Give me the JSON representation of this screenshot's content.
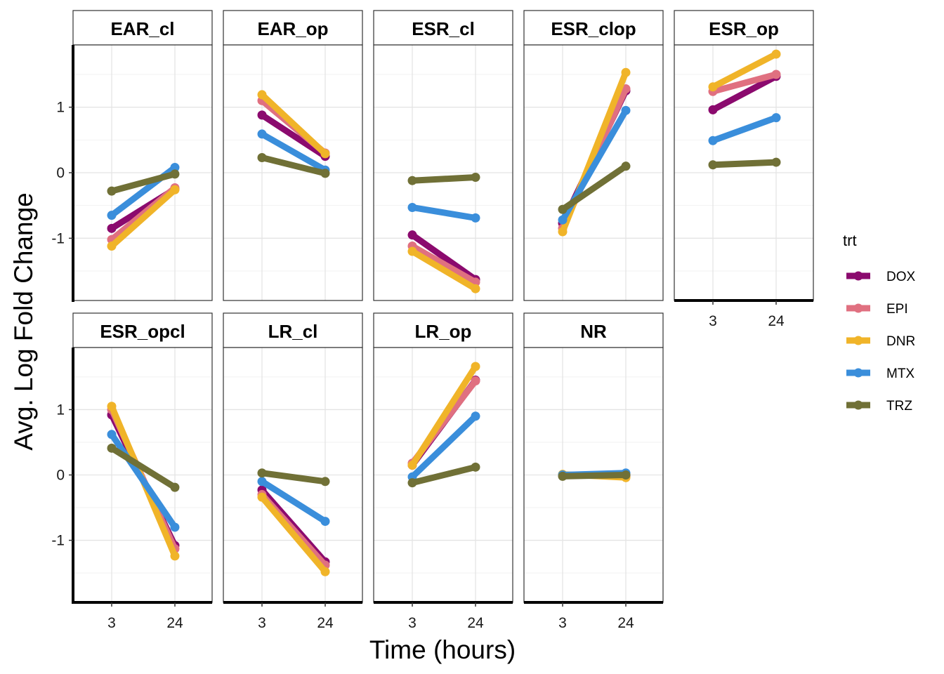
{
  "chart_data": {
    "type": "line",
    "facet_by": "module",
    "x_label": "Time (hours)",
    "y_label": "Avg. Log Fold Change",
    "x_categories": [
      "3",
      "24"
    ],
    "y_ticks": [
      -1,
      0,
      1
    ],
    "y_range": [
      -1.95,
      1.95
    ],
    "grid": true,
    "legend": {
      "title": "trt",
      "position": "right",
      "entries": [
        {
          "name": "DOX",
          "color": "#8B0A6E"
        },
        {
          "name": "EPI",
          "color": "#E07080"
        },
        {
          "name": "DNR",
          "color": "#F0B429"
        },
        {
          "name": "MTX",
          "color": "#3A8EDB"
        },
        {
          "name": "TRZ",
          "color": "#707036"
        }
      ]
    },
    "facets": [
      {
        "name": "EAR_cl",
        "series": {
          "DOX": [
            -0.85,
            -0.25
          ],
          "EPI": [
            -1.02,
            -0.23
          ],
          "DNR": [
            -1.12,
            -0.26
          ],
          "MTX": [
            -0.65,
            0.08
          ],
          "TRZ": [
            -0.28,
            -0.02
          ]
        }
      },
      {
        "name": "EAR_op",
        "series": {
          "DOX": [
            0.88,
            0.25
          ],
          "EPI": [
            1.1,
            0.3
          ],
          "DNR": [
            1.19,
            0.29
          ],
          "MTX": [
            0.59,
            0.04
          ],
          "TRZ": [
            0.23,
            -0.01
          ]
        }
      },
      {
        "name": "ESR_cl",
        "series": {
          "DOX": [
            -0.95,
            -1.63
          ],
          "EPI": [
            -1.12,
            -1.67
          ],
          "DNR": [
            -1.2,
            -1.77
          ],
          "MTX": [
            -0.53,
            -0.69
          ],
          "TRZ": [
            -0.12,
            -0.07
          ]
        }
      },
      {
        "name": "ESR_clop",
        "series": {
          "DOX": [
            -0.77,
            1.25
          ],
          "EPI": [
            -0.85,
            1.28
          ],
          "DNR": [
            -0.9,
            1.53
          ],
          "MTX": [
            -0.72,
            0.95
          ],
          "TRZ": [
            -0.56,
            0.1
          ]
        }
      },
      {
        "name": "ESR_op",
        "series": {
          "DOX": [
            0.96,
            1.47
          ],
          "EPI": [
            1.24,
            1.5
          ],
          "DNR": [
            1.31,
            1.81
          ],
          "MTX": [
            0.49,
            0.84
          ],
          "TRZ": [
            0.12,
            0.16
          ]
        }
      },
      {
        "name": "ESR_opcl",
        "series": {
          "DOX": [
            0.92,
            -1.08
          ],
          "EPI": [
            1.0,
            -1.13
          ],
          "DNR": [
            1.05,
            -1.24
          ],
          "MTX": [
            0.62,
            -0.8
          ],
          "TRZ": [
            0.41,
            -0.19
          ]
        }
      },
      {
        "name": "LR_cl",
        "series": {
          "DOX": [
            -0.23,
            -1.33
          ],
          "EPI": [
            -0.3,
            -1.38
          ],
          "DNR": [
            -0.34,
            -1.48
          ],
          "MTX": [
            -0.1,
            -0.71
          ],
          "TRZ": [
            0.03,
            -0.1
          ]
        }
      },
      {
        "name": "LR_op",
        "series": {
          "DOX": [
            0.15,
            1.45
          ],
          "EPI": [
            0.18,
            1.44
          ],
          "DNR": [
            0.15,
            1.66
          ],
          "MTX": [
            -0.03,
            0.9
          ],
          "TRZ": [
            -0.12,
            0.12
          ]
        }
      },
      {
        "name": "NR",
        "series": {
          "DOX": [
            -0.01,
            -0.01
          ],
          "EPI": [
            0.0,
            -0.02
          ],
          "DNR": [
            0.01,
            -0.04
          ],
          "MTX": [
            0.0,
            0.03
          ],
          "TRZ": [
            -0.02,
            0.0
          ]
        }
      }
    ]
  }
}
